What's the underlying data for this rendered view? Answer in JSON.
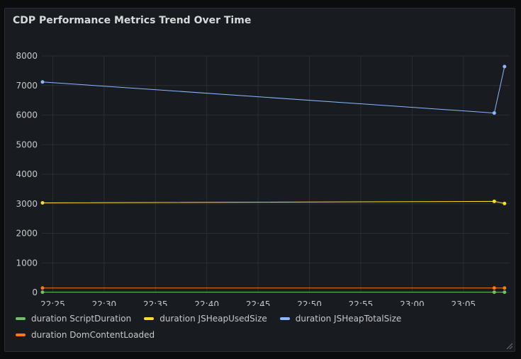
{
  "panel": {
    "title": "CDP Performance Metrics Trend Over Time"
  },
  "chart_data": {
    "type": "line",
    "title": "CDP Performance Metrics Trend Over Time",
    "xlabel": "",
    "ylabel": "",
    "ylim": [
      0,
      8000
    ],
    "y_ticks": [
      0,
      1000,
      2000,
      3000,
      4000,
      5000,
      6000,
      7000,
      8000
    ],
    "xlim": [
      "22:23:56",
      "23:09:30"
    ],
    "x_ticks": [
      "22:25",
      "22:30",
      "22:35",
      "22:40",
      "22:45",
      "22:50",
      "22:55",
      "23:00",
      "23:05"
    ],
    "x": [
      "22:24:00",
      "23:08:00",
      "23:09:00"
    ],
    "grid": true,
    "legend_position": "bottom",
    "series": [
      {
        "name": "duration ScriptDuration",
        "color": "#73bf69",
        "values": [
          10,
          10,
          10
        ]
      },
      {
        "name": "duration JSHeapUsedSize",
        "color": "#fade2a",
        "values": [
          3030,
          3080,
          3010
        ]
      },
      {
        "name": "duration JSHeapTotalSize",
        "color": "#8ab8ff",
        "values": [
          7120,
          6070,
          7640
        ]
      },
      {
        "name": "duration DomContentLoaded",
        "color": "#ff780a",
        "values": [
          150,
          150,
          150
        ]
      }
    ]
  }
}
